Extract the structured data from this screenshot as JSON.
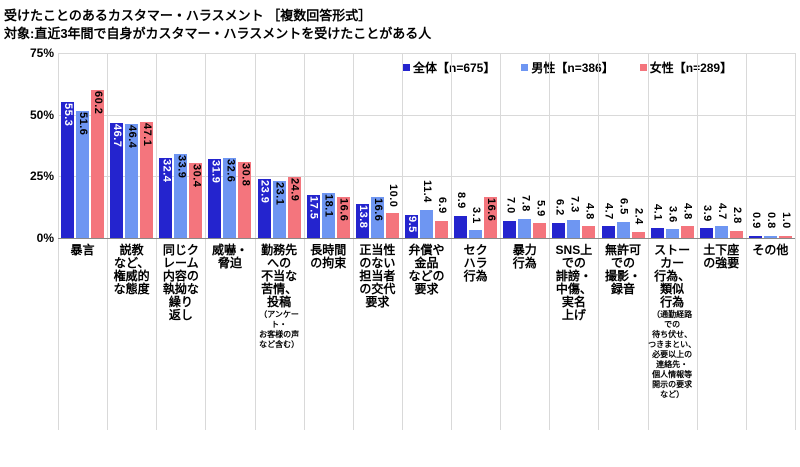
{
  "title": "受けたことのあるカスタマー・ハラスメント ［複数回答形式］",
  "subtitle": "対象:直近3年間で自身がカスタマー・ハラスメントを受けたことがある人",
  "colors": {
    "overall": "#2424CE",
    "male": "#6E96F2",
    "female": "#F4757D",
    "grid": "#D9D9D9",
    "axis": "#898989",
    "label_inside_overall": "#FFFFFF",
    "label_default": "#000000"
  },
  "chart_data": {
    "type": "bar",
    "title": "受けたことのあるカスタマー・ハラスメント ［複数回答形式］",
    "subtitle": "対象:直近3年間で自身がカスタマー・ハラスメントを受けたことがある人",
    "ylim": [
      0,
      75
    ],
    "yticks": [
      75,
      50,
      25,
      0
    ],
    "ytick_labels": [
      "75%",
      "50%",
      "25%",
      "0%"
    ],
    "grid": true,
    "legend_position": "top",
    "value_label_suffix": "",
    "categories": [
      {
        "label": "暴言",
        "lines": "暴言"
      },
      {
        "label": "説教など、権威的な態度",
        "lines": "説教\nなど、\n権威的\nな態度"
      },
      {
        "label": "同じクレーム内容の執拗な繰り返し",
        "lines": "同じク\nレーム\n内容の\n執拗な\n繰り\n返し"
      },
      {
        "label": "威嚇・脅迫",
        "lines": "威嚇・\n脅迫"
      },
      {
        "label": "勤務先への不当な苦情、投稿（アンケート・お客様の声など含む）",
        "lines": "勤務先\nへの\n不当な\n苦情、\n投稿",
        "note": "（アンケート・\nお客様の声\nなど含む）"
      },
      {
        "label": "長時間の拘束",
        "lines": "長時間\nの拘束"
      },
      {
        "label": "正当性のない担当者の交代要求",
        "lines": "正当性\nのない\n担当者\nの交代\n要求"
      },
      {
        "label": "弁償や金品などの要求",
        "lines": "弁償や\n金品\nなどの\n要求"
      },
      {
        "label": "セクハラ行為",
        "lines": "セク\nハラ\n行為"
      },
      {
        "label": "暴力行為",
        "lines": "暴力\n行為"
      },
      {
        "label": "SNS上での誹謗・中傷、実名上げ",
        "lines": "SNS上\nでの\n誹謗・\n中傷、\n実名\n上げ"
      },
      {
        "label": "無許可での撮影・録音",
        "lines": "無許可\nでの\n撮影・\n録音"
      },
      {
        "label": "ストーカー行為、類似行為（通勤経路での待ち伏せ、つきまとい、必要以上の連絡先・個人情報等開示の要求など）",
        "lines": "ストー\nカー\n行為、\n類似\n行為",
        "note": "（通勤経路\nでの\n待ち伏せ、\nつきまとい、\n必要以上の\n連絡先・\n個人情報等\n開示の要求\nなど）"
      },
      {
        "label": "土下座の強要",
        "lines": "土下座\nの強要"
      },
      {
        "label": "その他",
        "lines": "その他"
      }
    ],
    "series": [
      {
        "name": "全体【n=675】",
        "color_key": "overall",
        "values": [
          55.3,
          46.7,
          32.4,
          31.9,
          23.9,
          17.5,
          13.8,
          9.5,
          8.9,
          7.0,
          6.2,
          4.7,
          4.1,
          3.9,
          0.9
        ]
      },
      {
        "name": "男性【n=386】",
        "color_key": "male",
        "values": [
          51.6,
          46.4,
          33.9,
          32.6,
          23.1,
          18.1,
          16.6,
          11.4,
          3.1,
          7.8,
          7.3,
          6.5,
          3.6,
          4.7,
          0.8
        ]
      },
      {
        "name": "女性【n=289】",
        "color_key": "female",
        "values": [
          60.2,
          47.1,
          30.4,
          30.8,
          24.9,
          16.6,
          10.0,
          6.9,
          16.6,
          5.9,
          4.8,
          2.4,
          4.8,
          2.8,
          1.0
        ]
      }
    ]
  }
}
